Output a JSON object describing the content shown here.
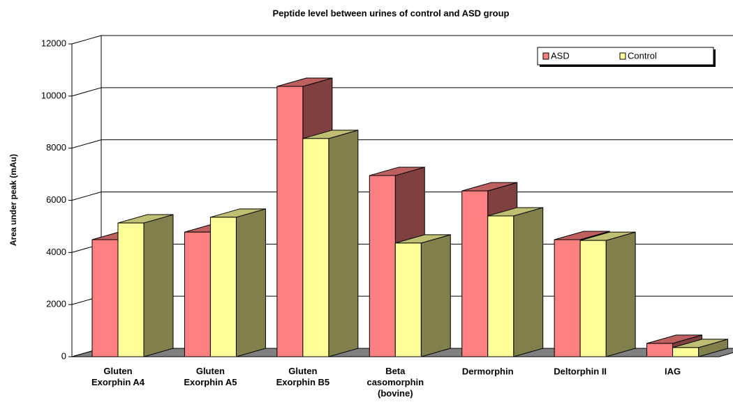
{
  "chart_data": {
    "type": "bar3d",
    "title": "Peptide level between urines of control and ASD group",
    "y_label": "Area under peak (mAu)",
    "categories": [
      "Gluten\nExorphin A4",
      "Gluten\nExorphin A5",
      "Gluten\nExorphin B5",
      "Beta\ncasomorphin\n(bovine)",
      "Dermorphin",
      "Deltorphin II",
      "IAG"
    ],
    "series": [
      {
        "name": "ASD",
        "color": "#FF8080",
        "values": [
          4490,
          4780,
          10370,
          6950,
          6360,
          4490,
          510
        ]
      },
      {
        "name": "Control",
        "color": "#FFFF99",
        "values": [
          5130,
          5350,
          8370,
          4360,
          5400,
          4460,
          350
        ]
      }
    ],
    "ylim": [
      0,
      12000
    ],
    "yticks": [
      0,
      2000,
      4000,
      6000,
      8000,
      10000,
      12000
    ],
    "grid": true,
    "legend": "top-right"
  }
}
